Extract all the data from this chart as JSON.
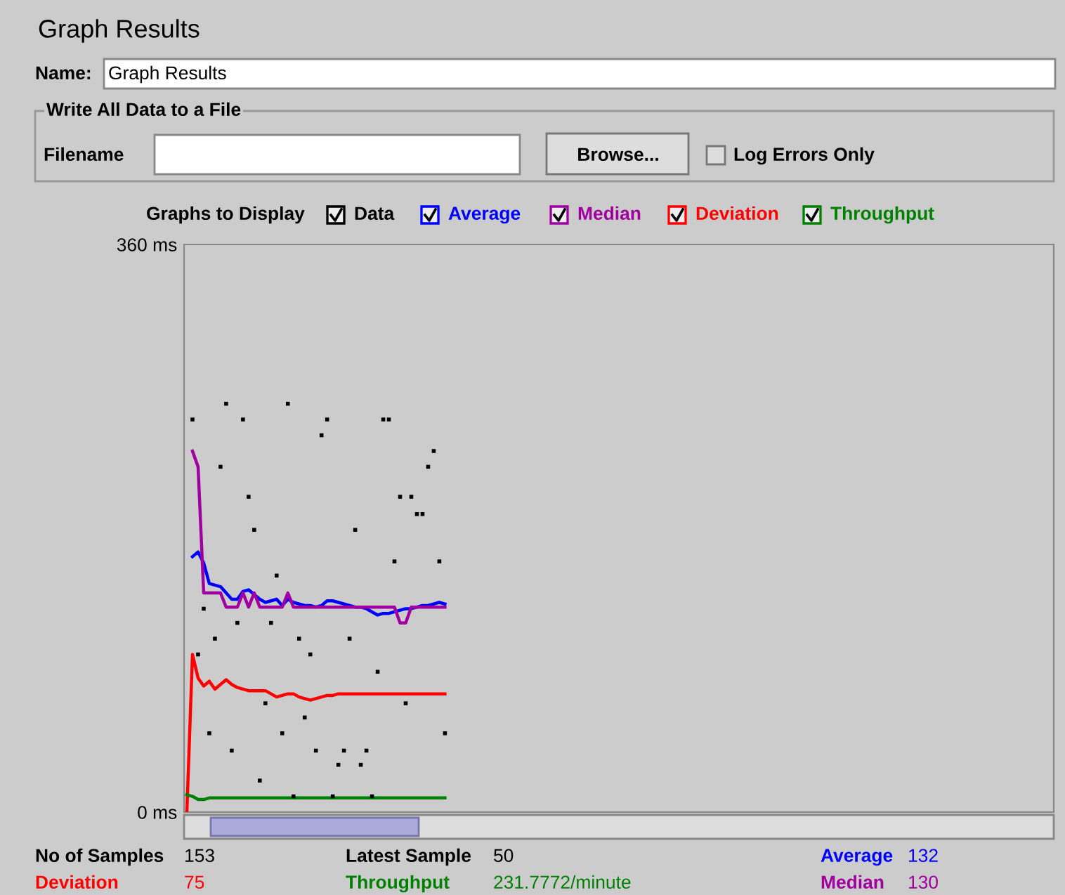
{
  "chart_data": {
    "type": "scatter",
    "title": "Graph Results",
    "legend_title": "Graphs to Display",
    "legend": "top",
    "ylim": [
      0,
      360
    ],
    "yticks": [
      {
        "value": 0,
        "label": "0 ms"
      },
      {
        "value": 360,
        "label": "360 ms"
      }
    ],
    "tick_labels": "y",
    "categories": [
      null,
      null,
      null,
      null,
      null,
      null,
      null,
      null,
      null,
      null,
      null,
      null,
      null,
      null,
      null,
      null,
      null,
      null,
      null,
      null,
      null,
      null,
      null,
      null,
      null,
      null,
      null,
      null,
      null,
      null,
      null,
      null,
      null,
      null,
      null,
      null,
      null,
      null,
      null,
      null,
      null,
      null,
      null,
      null,
      null,
      null,
      null,
      null,
      null,
      null,
      null,
      null,
      null,
      null,
      null,
      null,
      null,
      null,
      null,
      null,
      null,
      null,
      null,
      null,
      null,
      null,
      null,
      null,
      null,
      null,
      null,
      null,
      null,
      null,
      null,
      null,
      null,
      null,
      null,
      null,
      null,
      null,
      null,
      null,
      null,
      null,
      null,
      null,
      null,
      null,
      null,
      null,
      null,
      null,
      null,
      null,
      null,
      null,
      null,
      null,
      null,
      null,
      null,
      null,
      null,
      null,
      null,
      null,
      null,
      null,
      null,
      null,
      null,
      null,
      null,
      null,
      null,
      null,
      null,
      null,
      null,
      null,
      null,
      null,
      null,
      null,
      null,
      null,
      null,
      null,
      null,
      null,
      null,
      null,
      null,
      null,
      null,
      null,
      null,
      null,
      null,
      null,
      null,
      null,
      null,
      null,
      null,
      null,
      null,
      null,
      null,
      null,
      null,
      null,
      null
    ],
    "series": [
      {
        "name": "Data",
        "color": "#000000",
        "values": [
          null,
          249,
          100,
          129,
          50,
          110,
          219,
          259,
          39,
          120,
          249,
          200,
          179,
          20,
          69,
          120,
          150,
          50,
          259,
          10,
          110,
          60,
          100,
          39,
          239,
          249,
          10,
          30,
          39,
          110,
          179,
          30,
          39,
          10,
          89,
          249,
          249,
          159,
          200,
          69,
          200,
          189,
          189,
          219,
          229,
          159,
          50,
          null,
          null,
          null,
          null,
          null,
          null,
          null,
          null,
          null,
          null,
          null,
          null,
          null,
          null,
          null,
          null,
          null,
          null,
          null,
          null,
          null,
          null,
          null,
          null,
          null,
          null,
          null,
          null,
          null,
          null,
          null,
          null,
          null,
          null,
          null,
          null,
          null,
          null,
          null,
          null,
          null,
          null,
          null,
          null,
          null,
          null,
          null,
          null,
          null,
          null,
          null,
          null,
          null,
          null,
          null,
          null,
          null,
          null,
          null,
          null,
          null,
          null,
          null,
          null,
          null,
          null,
          null,
          null,
          null,
          null,
          null,
          null,
          null,
          null,
          null,
          null,
          null,
          null,
          null,
          null,
          null,
          null,
          null,
          null,
          null,
          null,
          null,
          null,
          null,
          null,
          null,
          null,
          null,
          null,
          null,
          null,
          null,
          null,
          null,
          null,
          null,
          null,
          null,
          null,
          null,
          null,
          null,
          null
        ]
      },
      {
        "name": "Average",
        "type": "line",
        "color": "#0000ff",
        "values": [
          null,
          162,
          165,
          158,
          145,
          144,
          143,
          139,
          135,
          135,
          140,
          141,
          138,
          135,
          133,
          134,
          135,
          131,
          135,
          133,
          132,
          131,
          131,
          130,
          131,
          134,
          134,
          133,
          132,
          131,
          130,
          130,
          129,
          127,
          125,
          126,
          126,
          127,
          128,
          129,
          129,
          130,
          131,
          131,
          132,
          133,
          132,
          null,
          null,
          null,
          null,
          null,
          null,
          null,
          null,
          null,
          null,
          null,
          null,
          null,
          null,
          null,
          null,
          null,
          null,
          null,
          null,
          null,
          null,
          null,
          null,
          null,
          null,
          null,
          null,
          null,
          null,
          null,
          null,
          null,
          null,
          null,
          null,
          null,
          null,
          null,
          null,
          null,
          null,
          null,
          null,
          null,
          null,
          null,
          null,
          null,
          null,
          null,
          null,
          null,
          null,
          null,
          null,
          null,
          null,
          null,
          null,
          null,
          null,
          null,
          null,
          null,
          null,
          null,
          null,
          null,
          null,
          null,
          null,
          null,
          null,
          null,
          null,
          null,
          null,
          null,
          null,
          null,
          null,
          null,
          null,
          null,
          null,
          null,
          null,
          null,
          null,
          null,
          null,
          null,
          null,
          null,
          null,
          null,
          null,
          null,
          null,
          null,
          null,
          null,
          null,
          null,
          null,
          null,
          null
        ]
      },
      {
        "name": "Median",
        "type": "line",
        "color": "#a000a0",
        "values": [
          null,
          229,
          219,
          139,
          139,
          139,
          139,
          130,
          130,
          130,
          139,
          130,
          139,
          130,
          130,
          130,
          130,
          130,
          139,
          130,
          130,
          130,
          130,
          130,
          130,
          130,
          130,
          130,
          130,
          130,
          130,
          130,
          130,
          130,
          130,
          130,
          130,
          130,
          120,
          120,
          130,
          130,
          130,
          130,
          130,
          130,
          130,
          null,
          null,
          null,
          null,
          null,
          null,
          null,
          null,
          null,
          null,
          null,
          null,
          null,
          null,
          null,
          null,
          null,
          null,
          null,
          null,
          null,
          null,
          null,
          null,
          null,
          null,
          null,
          null,
          null,
          null,
          null,
          null,
          null,
          null,
          null,
          null,
          null,
          null,
          null,
          null,
          null,
          null,
          null,
          null,
          null,
          null,
          null,
          null,
          null,
          null,
          null,
          null,
          null,
          null,
          null,
          null,
          null,
          null,
          null,
          null,
          null,
          null,
          null,
          null,
          null,
          null,
          null,
          null,
          null,
          null,
          null,
          null,
          null,
          null,
          null,
          null,
          null,
          null,
          null,
          null,
          null,
          null,
          null,
          null,
          null,
          null,
          null,
          null,
          null,
          null,
          null,
          null,
          null,
          null,
          null,
          null,
          null,
          null,
          null,
          null,
          null,
          null,
          null,
          null,
          null,
          null,
          null,
          null
        ]
      },
      {
        "name": "Deviation",
        "type": "line",
        "color": "#ff0000",
        "values": [
          0,
          100,
          85,
          80,
          83,
          78,
          81,
          84,
          81,
          79,
          78,
          77,
          77,
          77,
          77,
          75,
          73,
          74,
          75,
          75,
          73,
          72,
          71,
          72,
          73,
          74,
          74,
          75,
          75,
          75,
          75,
          75,
          75,
          75,
          75,
          75,
          75,
          75,
          75,
          75,
          75,
          75,
          75,
          75,
          75,
          75,
          75,
          null,
          null,
          null,
          null,
          null,
          null,
          null,
          null,
          null,
          null,
          null,
          null,
          null,
          null,
          null,
          null,
          null,
          null,
          null,
          null,
          null,
          null,
          null,
          null,
          null,
          null,
          null,
          null,
          null,
          null,
          null,
          null,
          null,
          null,
          null,
          null,
          null,
          null,
          null,
          null,
          null,
          null,
          null,
          null,
          null,
          null,
          null,
          null,
          null,
          null,
          null,
          null,
          null,
          null,
          null,
          null,
          null,
          null,
          null,
          null,
          null,
          null,
          null,
          null,
          null,
          null,
          null,
          null,
          null,
          null,
          null,
          null,
          null,
          null,
          null,
          null,
          null,
          null,
          null,
          null,
          null,
          null,
          null,
          null,
          null,
          null,
          null,
          null,
          null,
          null,
          null,
          null,
          null,
          null,
          null,
          null,
          null,
          null,
          null,
          null,
          null,
          null,
          null,
          null,
          null,
          null,
          null,
          null
        ]
      },
      {
        "name": "Throughput",
        "type": "line",
        "color": "#008000",
        "values": [
          11,
          10,
          8,
          8,
          9,
          9,
          9,
          9,
          9,
          9,
          9,
          9,
          9,
          9,
          9,
          9,
          9,
          9,
          9,
          9,
          9,
          9,
          9,
          9,
          9,
          9,
          9,
          9,
          9,
          9,
          9,
          9,
          9,
          9,
          9,
          9,
          9,
          9,
          9,
          9,
          9,
          9,
          9,
          9,
          9,
          9,
          9,
          null,
          null,
          null,
          null,
          null,
          null,
          null,
          null,
          null,
          null,
          null,
          null,
          null,
          null,
          null,
          null,
          null,
          null,
          null,
          null,
          null,
          null,
          null,
          null,
          null,
          null,
          null,
          null,
          null,
          null,
          null,
          null,
          null,
          null,
          null,
          null,
          null,
          null,
          null,
          null,
          null,
          null,
          null,
          null,
          null,
          null,
          null,
          null,
          null,
          null,
          null,
          null,
          null,
          null,
          null,
          null,
          null,
          null,
          null,
          null,
          null,
          null,
          null,
          null,
          null,
          null,
          null,
          null,
          null,
          null,
          null,
          null,
          null,
          null,
          null,
          null,
          null,
          null,
          null,
          null,
          null,
          null,
          null,
          null,
          null,
          null,
          null,
          null,
          null,
          null,
          null,
          null,
          null,
          null,
          null,
          null,
          null,
          null,
          null,
          null,
          null,
          null,
          null,
          null,
          null,
          null,
          null,
          null
        ]
      }
    ],
    "annotations": [
      "Name:",
      "Graph Results",
      "Write All Data to a File",
      "Filename",
      "Browse...",
      "Log Errors Only",
      "No of Samples",
      "153",
      "Latest Sample",
      "50",
      "Average",
      "132",
      "Deviation",
      "75",
      "Throughput",
      "231.7772/minute",
      "Median",
      "130"
    ]
  }
}
